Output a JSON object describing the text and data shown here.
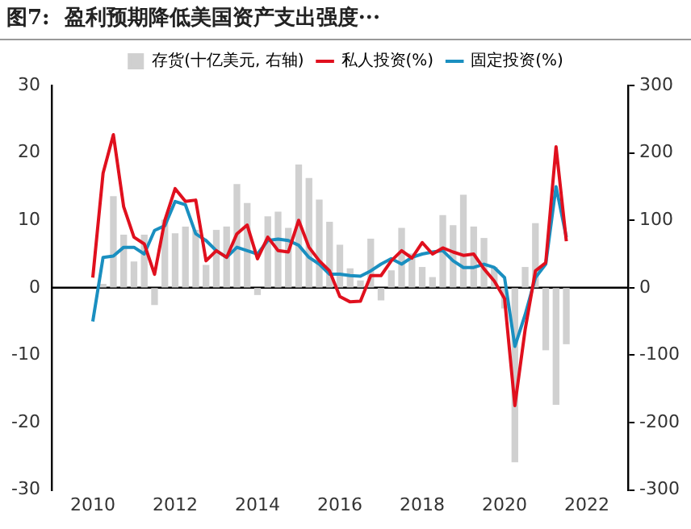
{
  "chart_data": {
    "type": "line",
    "title": "图7:  盈利预期降低美国资产支出强度···",
    "x": [
      2010,
      2010.25,
      2010.5,
      2010.75,
      2011,
      2011.25,
      2011.5,
      2011.75,
      2012,
      2012.25,
      2012.5,
      2012.75,
      2013,
      2013.25,
      2013.5,
      2013.75,
      2014,
      2014.25,
      2014.5,
      2014.75,
      2015,
      2015.25,
      2015.5,
      2015.75,
      2016,
      2016.25,
      2016.5,
      2016.75,
      2017,
      2017.25,
      2017.5,
      2017.75,
      2018,
      2018.25,
      2018.5,
      2018.75,
      2019,
      2019.25,
      2019.5,
      2019.75,
      2020,
      2020.25,
      2020.5,
      2020.75,
      2021,
      2021.25,
      2021.5
    ],
    "series": [
      {
        "name": "存货(十亿美元, 右轴)",
        "type": "bar",
        "axis": "y2",
        "color": "#d0d0d0",
        "values": [
          null,
          5,
          135,
          78,
          38,
          78,
          -25,
          100,
          80,
          90,
          85,
          33,
          85,
          90,
          153,
          125,
          -10,
          105,
          112,
          88,
          182,
          162,
          130,
          97,
          63,
          28,
          10,
          72,
          -18,
          25,
          88,
          50,
          30,
          15,
          107,
          92,
          137,
          90,
          73,
          30,
          -30,
          -258,
          30,
          95,
          -92,
          -173,
          -83
        ]
      },
      {
        "name": "私人投资(%)",
        "color": "#e0101e",
        "values": [
          1.5,
          17,
          22.7,
          12,
          7.5,
          6.5,
          2,
          10,
          14.7,
          12.8,
          13,
          4,
          5.5,
          4.5,
          8,
          9.3,
          4.3,
          7.5,
          5.5,
          5.3,
          10,
          6,
          4,
          2.5,
          -1.3,
          -2.1,
          -2,
          1.8,
          1.8,
          4,
          5.5,
          4.4,
          6.7,
          5,
          5.9,
          5.3,
          4.8,
          5,
          2.8,
          1,
          -1.6,
          -17.5,
          -6.2,
          2.5,
          3.7,
          20.9,
          6.9
        ]
      },
      {
        "name": "固定投资(%)",
        "color": "#1a8fc0",
        "values": [
          -5,
          4.5,
          4.7,
          6,
          6,
          5,
          8.5,
          9.2,
          12.8,
          12.3,
          8,
          7,
          5.5,
          4.5,
          6,
          5.5,
          5,
          7,
          7.2,
          7,
          6.3,
          4.5,
          3.5,
          2,
          2,
          1.8,
          1.7,
          2.5,
          3.5,
          4.3,
          3.5,
          4.5,
          5,
          5.3,
          5.5,
          4,
          3,
          3,
          3.5,
          3,
          1.5,
          -8.7,
          -4,
          1.5,
          3.5,
          15,
          7.5
        ]
      }
    ],
    "xlim": [
      2010,
      2022
    ],
    "xticks": [
      2010,
      2012,
      2014,
      2016,
      2018,
      2020,
      2022
    ],
    "ylim": [
      -30,
      30
    ],
    "yticks": [
      -30,
      -20,
      -10,
      0,
      10,
      20,
      30
    ],
    "y2lim": [
      -300,
      300
    ],
    "y2ticks": [
      -300,
      -200,
      -100,
      0,
      100,
      200,
      300
    ],
    "ref_lines": [
      {
        "axis": "y",
        "value": 0,
        "color": "#000000"
      }
    ],
    "legend": "top",
    "grid": false,
    "marker": "none",
    "line_style": "solid"
  }
}
